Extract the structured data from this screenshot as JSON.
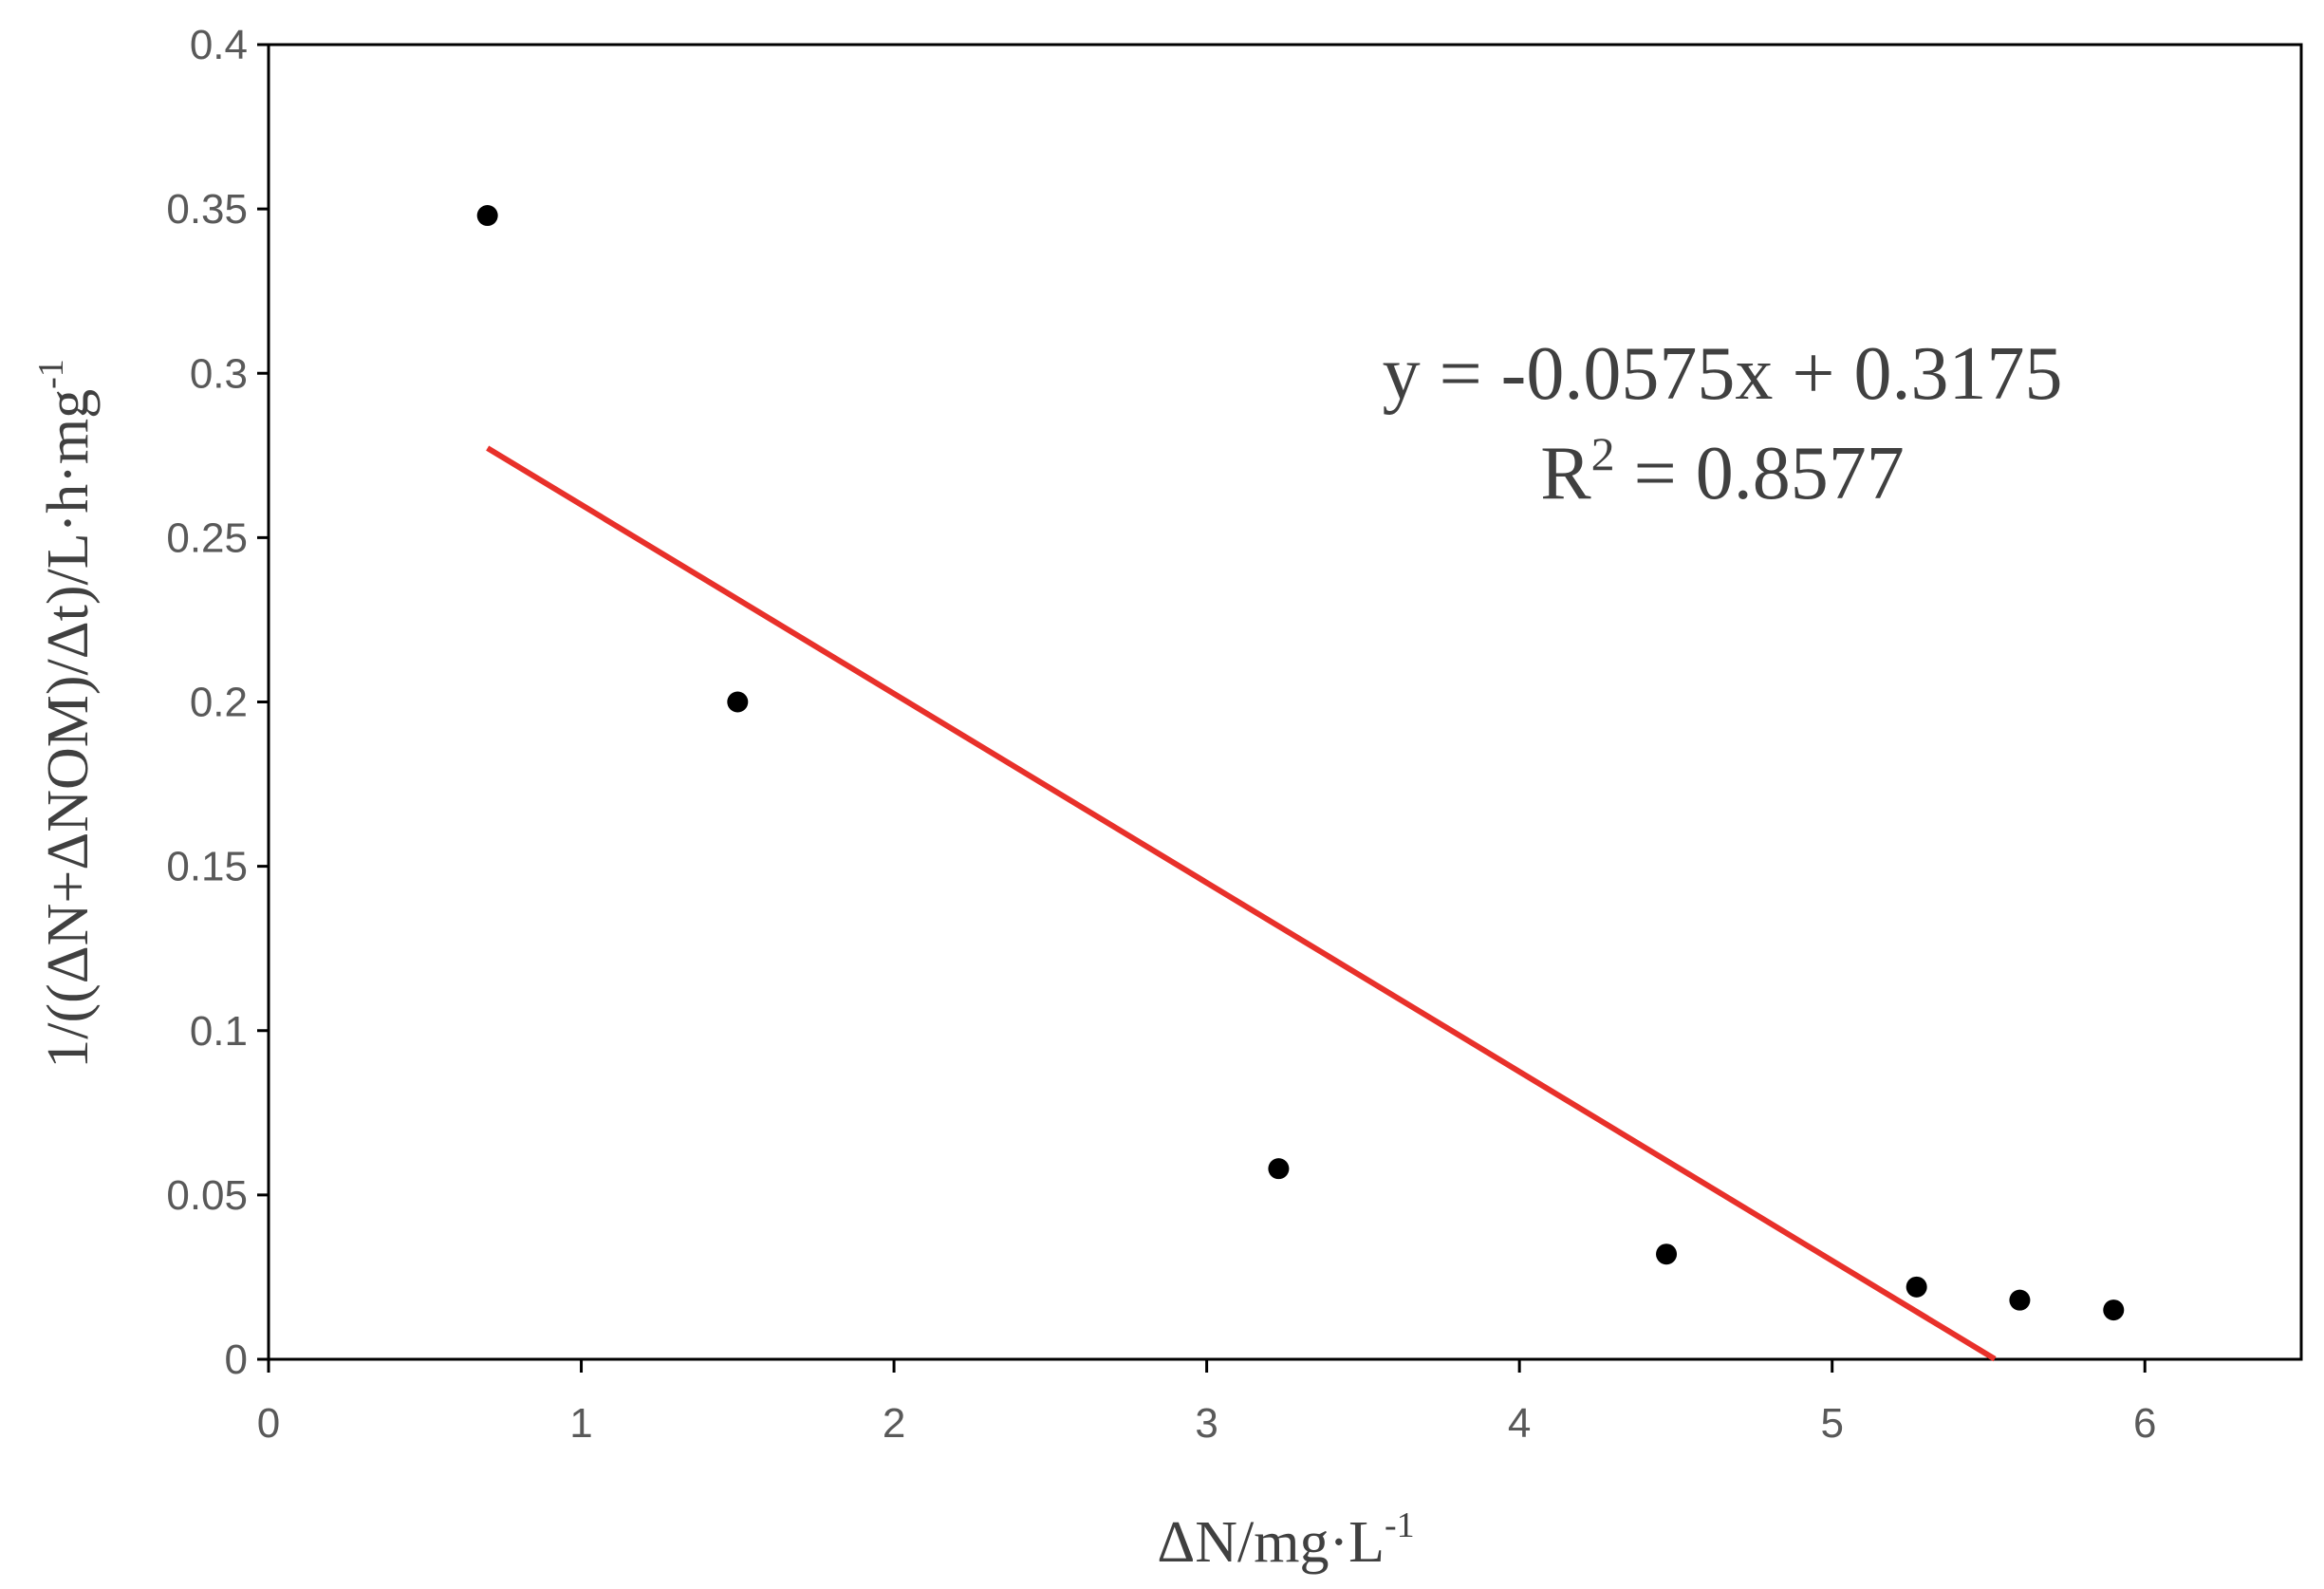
{
  "chart_data": {
    "type": "scatter",
    "title": "",
    "xlabel": "ΔN/mg·L-1",
    "ylabel": "1/((ΔN+ΔNOM)/Δt)/L·h·mg-1",
    "xlabel_parts": {
      "base": "ΔN/mg·L",
      "sup": "-1"
    },
    "ylabel_parts": {
      "base": "1/((ΔN+ΔNOM)/Δt)/L·h·mg",
      "sup": "-1"
    },
    "xlim": [
      0,
      6.5
    ],
    "ylim": [
      0,
      0.4
    ],
    "x_ticks": [
      0,
      1,
      2,
      3,
      4,
      5,
      6
    ],
    "y_ticks": [
      0,
      0.05,
      0.1,
      0.15,
      0.2,
      0.25,
      0.3,
      0.35,
      0.4
    ],
    "x_tick_labels": [
      "0",
      "1",
      "2",
      "3",
      "4",
      "5",
      "6"
    ],
    "y_tick_labels": [
      "0",
      "0.05",
      "0.1",
      "0.15",
      "0.2",
      "0.25",
      "0.3",
      "0.35",
      "0.4"
    ],
    "grid": false,
    "legend": "none",
    "series": [
      {
        "points": [
          {
            "x": 0.7,
            "y": 0.348
          },
          {
            "x": 1.5,
            "y": 0.2
          },
          {
            "x": 3.23,
            "y": 0.058
          },
          {
            "x": 4.47,
            "y": 0.032
          },
          {
            "x": 5.27,
            "y": 0.022
          },
          {
            "x": 5.6,
            "y": 0.018
          },
          {
            "x": 5.9,
            "y": 0.015
          }
        ],
        "color": "#000000"
      }
    ],
    "trendline": {
      "slope": -0.0575,
      "intercept": 0.3175,
      "x_range": [
        0.7,
        5.52
      ],
      "color": "#e8302a"
    },
    "annotations": {
      "equation": "y = -0.0575x + 0.3175",
      "r2_prefix": "R",
      "r2_sup": "2",
      "r2_value": " = 0.8577"
    }
  }
}
